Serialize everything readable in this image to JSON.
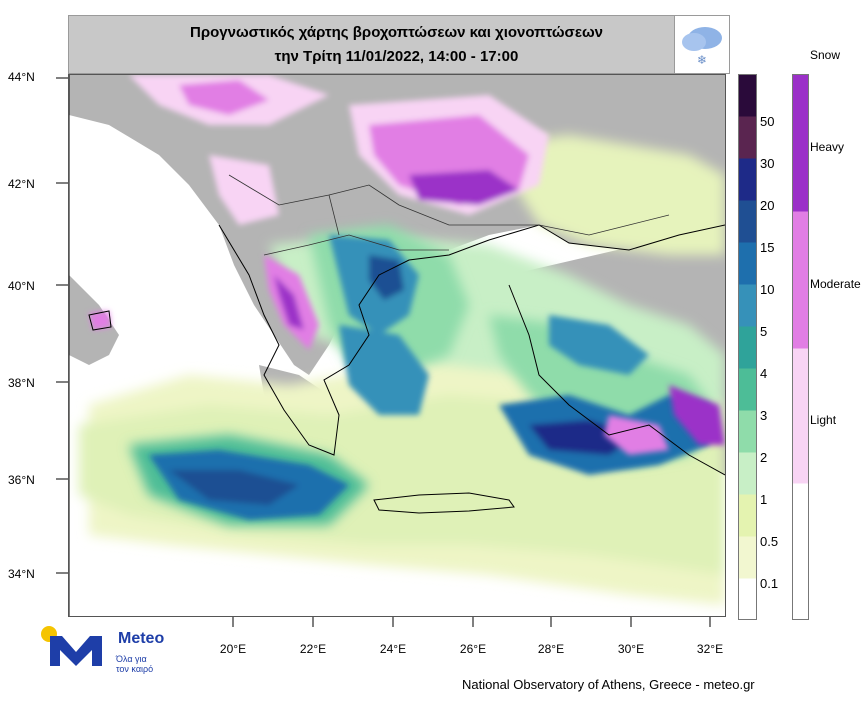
{
  "header": {
    "title_line1": "Προγνωστικός χάρτης βροχοπτώσεων και χιονοπτώσεων",
    "title_line2": "την Τρίτη 11/01/2022, 14:00 - 17:00",
    "left_icon": "rain-thunder-cloud-icon",
    "right_icon": "snow-cloud-icon"
  },
  "axes": {
    "latitudes": [
      "44°N",
      "42°N",
      "40°N",
      "38°N",
      "36°N",
      "34°N"
    ],
    "longitudes": [
      "20°E",
      "22°E",
      "24°E",
      "26°E",
      "28°E",
      "30°E",
      "32°E"
    ]
  },
  "rain_legend": {
    "labels": [
      "50",
      "30",
      "20",
      "15",
      "10",
      "5",
      "4",
      "3",
      "2",
      "1",
      "0.5",
      "0.1"
    ],
    "colors": [
      "#2a0a3a",
      "#5a2550",
      "#1e2a88",
      "#1f4f93",
      "#1e6fad",
      "#3691b9",
      "#2fa39a",
      "#4dbd97",
      "#8fdcaa",
      "#c8efc6",
      "#e4f3b0",
      "#f2f7d0",
      "#ffffff"
    ]
  },
  "snow_legend": {
    "title": "Snow",
    "labels": [
      "Heavy",
      "Moderate",
      "Light"
    ],
    "colors": [
      "#9b30c8",
      "#e17ee4",
      "#f8d4f4",
      "#ffffff"
    ]
  },
  "branding": {
    "name": "Meteo",
    "tagline_line1": "Όλα για",
    "tagline_line2": "τον καιρό",
    "logo_icon": "meteo-m-logo-icon",
    "credit": "National Observatory of Athens, Greece - meteo.gr"
  },
  "colors": {
    "land": "#b4b4b4",
    "sea": "#ffffff",
    "header_bg": "#c8c8c8"
  }
}
